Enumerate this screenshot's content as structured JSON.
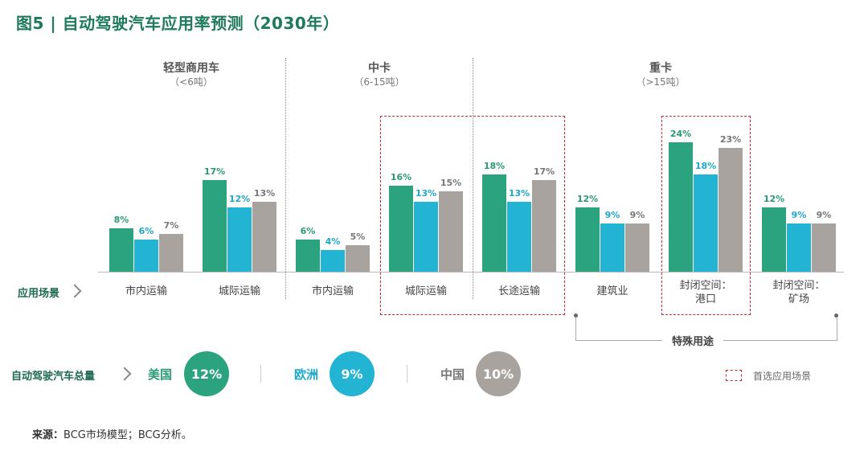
{
  "title": "图5 | 自动驾驶汽车应用率预测（2030年）",
  "groups": [
    {
      "name": "轻型商用车",
      "sub": "（<6吨）"
    },
    {
      "name": "中卡",
      "sub": "（6-15吨）"
    },
    {
      "name": "重卡",
      "sub": "（>15吨）"
    }
  ],
  "row_label": "应用场景",
  "scenario_labels": [
    [
      "市内运输"
    ],
    [
      "城际运输"
    ],
    [
      "市内运输"
    ],
    [
      "城际运输"
    ],
    [
      "长途运输"
    ],
    [
      "建筑业"
    ],
    [
      "封闭空间：",
      "港口"
    ],
    [
      "封闭空间：",
      "矿场"
    ]
  ],
  "special_label": "特殊用途",
  "totals_label": "自动驾驶汽车总量",
  "totals": [
    {
      "region": "美国",
      "value": "12%"
    },
    {
      "region": "欧洲",
      "value": "9%"
    },
    {
      "region": "中国",
      "value": "10%"
    }
  ],
  "legend_label": "首选应用场景",
  "source_label": "来源：",
  "source_text": "BCG市场模型；BCG分析。",
  "colors": {
    "us": "#2aa37e",
    "eu": "#23b3d3",
    "cn": "#a8a39e",
    "label_us": "#2a9a74",
    "label_eu": "#1ea8c8",
    "label_cn": "#777777"
  },
  "chart_data": {
    "type": "bar",
    "categories": [
      "市内运输",
      "城际运输",
      "市内运输",
      "城际运输",
      "长途运输",
      "建筑业",
      "封闭空间：港口",
      "封闭空间：矿场"
    ],
    "series": [
      {
        "values": [
          8,
          17,
          6,
          16,
          18,
          12,
          24,
          12
        ]
      },
      {
        "values": [
          6,
          12,
          4,
          13,
          13,
          9,
          18,
          9
        ]
      },
      {
        "values": [
          7,
          13,
          5,
          15,
          17,
          9,
          23,
          9
        ]
      }
    ],
    "value_labels": [
      [
        "8%",
        "17%",
        "6%",
        "16%",
        "18%",
        "12%",
        "24%",
        "12%"
      ],
      [
        "6%",
        "12%",
        "4%",
        "13%",
        "13%",
        "9%",
        "18%",
        "9%"
      ],
      [
        "7%",
        "13%",
        "5%",
        "15%",
        "17%",
        "9%",
        "23%",
        "9%"
      ]
    ],
    "ylim": [
      0,
      25
    ]
  }
}
